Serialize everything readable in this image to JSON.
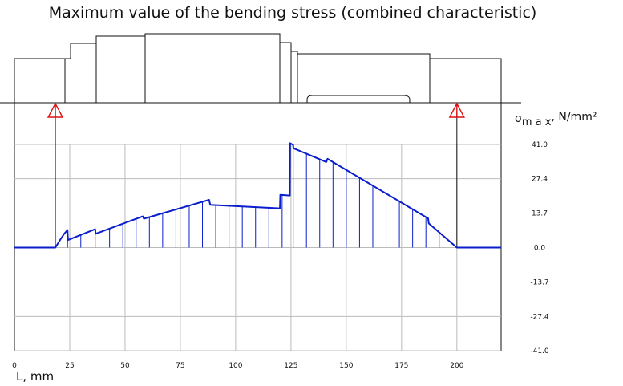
{
  "chart_data": {
    "type": "line",
    "title": "Maximum value of the bending stress (combined characteristic)",
    "xlabel": "L, mm",
    "ylabel": {
      "symbol": "σ",
      "subscript": "m a x",
      "unit": ", N/mm²"
    },
    "xlim": [
      0,
      220
    ],
    "ylim": [
      -41.0,
      41.0
    ],
    "x_ticks": [
      0,
      25,
      50,
      75,
      100,
      125,
      150,
      175,
      200
    ],
    "y_ticks": [
      "41.0",
      "27.4",
      "13.7",
      "0.0",
      "-13.7",
      "-27.4",
      "-41.0"
    ],
    "grid": true,
    "supports_x": [
      18.5,
      200
    ],
    "series": [
      {
        "color": "#0a1ecc",
        "x": [
          0,
          18.5,
          21,
          22.5,
          24,
          24.2,
          36.5,
          36.7,
          58,
          58.5,
          88,
          88.5,
          120,
          120.2,
          124.5,
          124.6,
          126,
          126.1,
          141,
          141.5,
          187,
          187.3,
          200,
          220
        ],
        "y": [
          0,
          0,
          3.5,
          5.5,
          7.0,
          3.0,
          7.3,
          5.5,
          12.4,
          11.5,
          19.0,
          17.0,
          15.6,
          21.0,
          20.7,
          41.5,
          40.8,
          39.5,
          34.0,
          35.3,
          11.6,
          9.6,
          0,
          0
        ]
      }
    ],
    "stem_x": [
      24,
      30,
      36.5,
      43,
      49,
      55,
      61,
      67,
      73,
      79,
      85,
      91,
      97,
      103,
      109,
      115,
      121,
      126,
      132,
      138,
      144,
      150,
      156,
      162,
      168,
      174,
      180,
      186,
      192
    ]
  }
}
